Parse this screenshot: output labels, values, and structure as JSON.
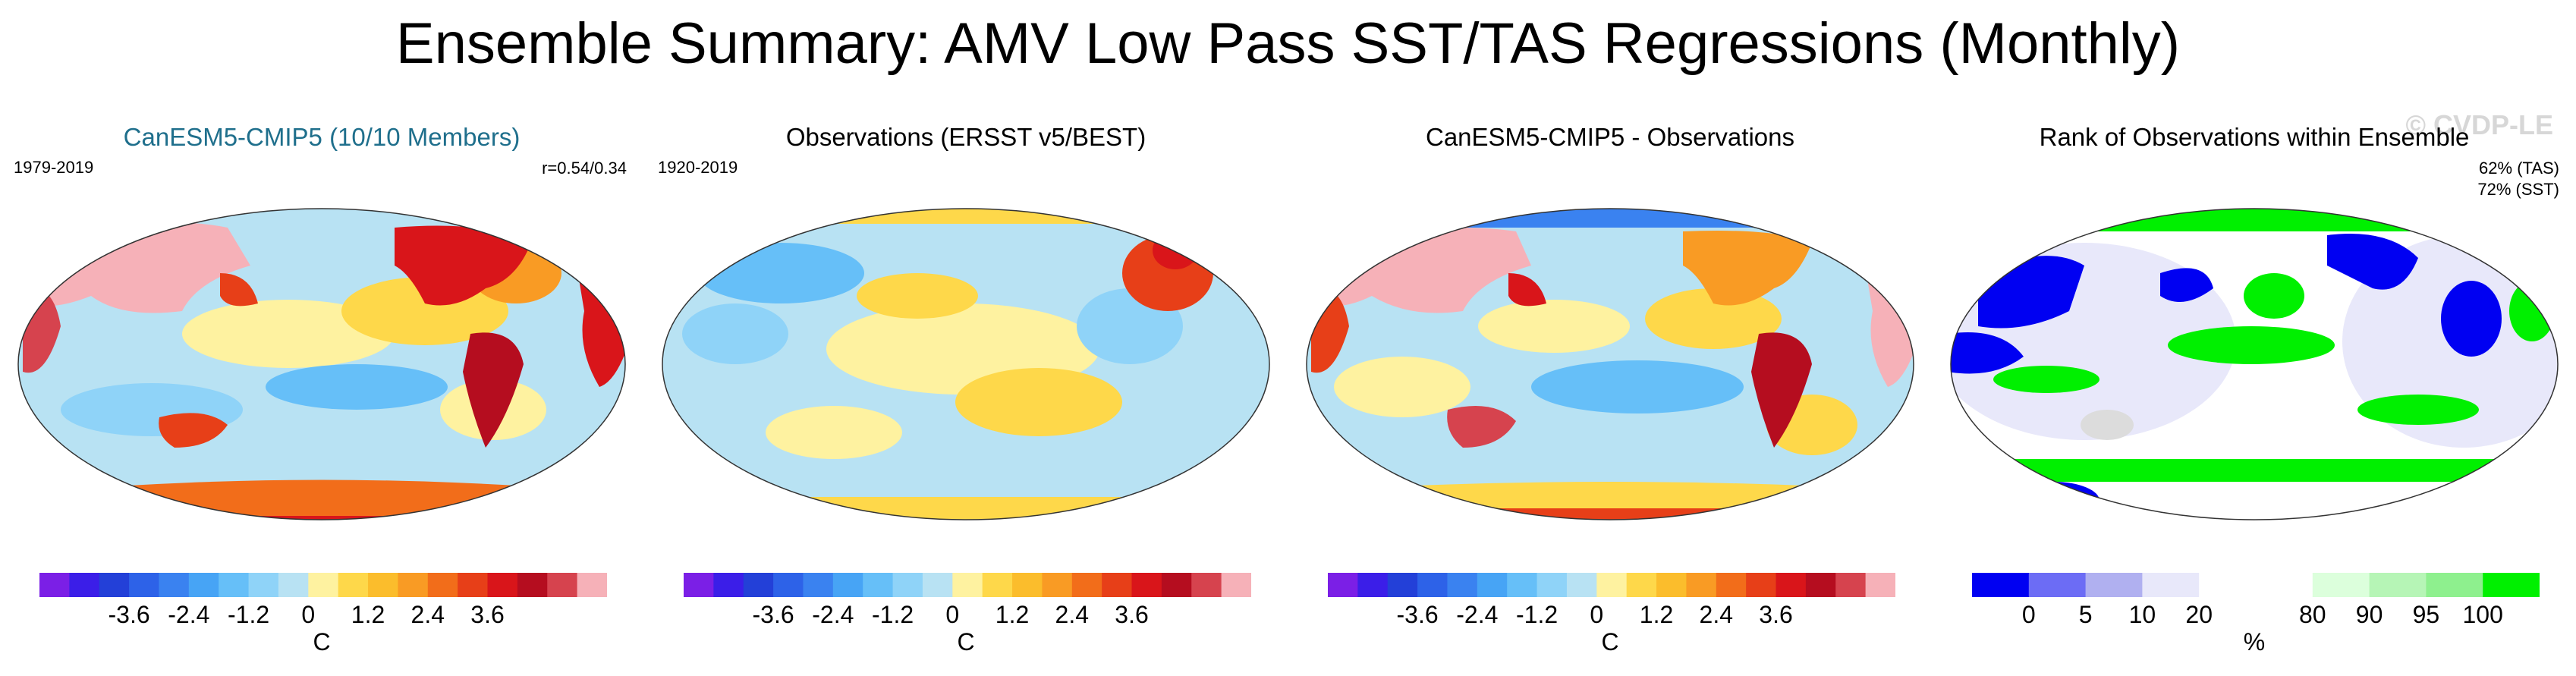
{
  "title": "Ensemble Summary: AMV Low Pass SST/TAS Regressions (Monthly)",
  "watermark": "© CVDP-LE",
  "colors": {
    "diverging": [
      "#7b1fe6",
      "#3b1ee8",
      "#2340d8",
      "#2d62e8",
      "#3a82f0",
      "#47a4f5",
      "#66bff8",
      "#8fd3f8",
      "#b8e2f3",
      "#fef2a0",
      "#fed84a",
      "#fbbd2c",
      "#f99b24",
      "#f26d1a",
      "#e73f18",
      "#d9151a",
      "#b50d1f",
      "#d6434e",
      "#f6b1b8"
    ],
    "rank": [
      "#0000f2",
      "#6c6cf5",
      "#b0b0f0",
      "#e8e8fa",
      "#ffffff",
      "#ffffff",
      "#dcffdc",
      "#b6f5b6",
      "#8ef08e",
      "#00f000"
    ],
    "land_warm": "#f6b1b8",
    "rank_land": "#dcdcdc"
  },
  "panels": [
    {
      "title": "CanESM5-CMIP5 (10/10 Members)",
      "left_note": "1979-2019",
      "right_notes": [
        "r=0.54/0.34"
      ],
      "colorbar": {
        "ticks": [
          "-3.6",
          "-2.4",
          "-1.2",
          "0",
          "1.2",
          "2.4",
          "3.6"
        ],
        "unit": "C"
      }
    },
    {
      "title": "Observations (ERSST v5/BEST)",
      "left_note": "1920-2019",
      "right_notes": [],
      "colorbar": {
        "ticks": [
          "-3.6",
          "-2.4",
          "-1.2",
          "0",
          "1.2",
          "2.4",
          "3.6"
        ],
        "unit": "C"
      }
    },
    {
      "title": "CanESM5-CMIP5 - Observations",
      "left_note": "",
      "right_notes": [],
      "colorbar": {
        "ticks": [
          "-3.6",
          "-2.4",
          "-1.2",
          "0",
          "1.2",
          "2.4",
          "3.6"
        ],
        "unit": "C"
      }
    },
    {
      "title": "Rank of Observations within Ensemble",
      "left_note": "",
      "right_notes": [
        "62% (TAS)",
        "72% (SST)"
      ],
      "colorbar": {
        "ticks": [
          "0",
          "5",
          "10",
          "20",
          "80",
          "90",
          "95",
          "100"
        ],
        "unit": "%"
      }
    }
  ]
}
